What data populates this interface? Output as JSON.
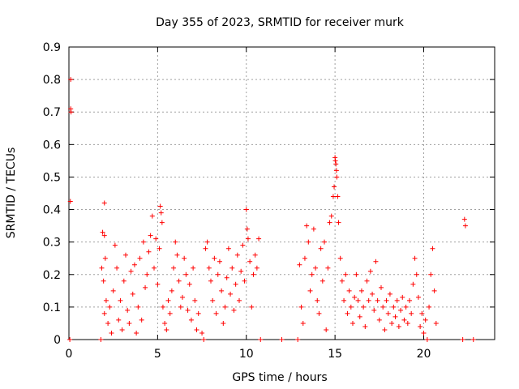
{
  "chart_data": {
    "type": "scatter",
    "title": "Day 355 of 2023, SRMTID for receiver murk",
    "xlabel": "GPS time / hours",
    "ylabel": "SRMTID / TECUs",
    "xlim": [
      0,
      24
    ],
    "ylim": [
      0,
      0.9
    ],
    "xticks": [
      0,
      5,
      10,
      15,
      20
    ],
    "xtick_labels": [
      "0",
      "5",
      "10",
      "15",
      "20"
    ],
    "yticks": [
      0,
      0.1,
      0.2,
      0.3,
      0.4,
      0.5,
      0.6,
      0.7,
      0.8,
      0.9
    ],
    "ytick_labels": [
      "0",
      "0.1",
      "0.2",
      "0.3",
      "0.4",
      "0.5",
      "0.6",
      "0.7",
      "0.8",
      "0.9"
    ],
    "grid": true,
    "marker": "+",
    "color": "#ff0000",
    "series": [
      {
        "name": "SRMTID",
        "points": [
          [
            0.1,
            0.8
          ],
          [
            0.1,
            0.71
          ],
          [
            0.12,
            0.7
          ],
          [
            0.08,
            0.425
          ],
          [
            0.05,
            0.0
          ],
          [
            1.8,
            0.0
          ],
          [
            2.0,
            0.42
          ],
          [
            1.9,
            0.33
          ],
          [
            2.0,
            0.32
          ],
          [
            1.85,
            0.22
          ],
          [
            2.05,
            0.25
          ],
          [
            1.95,
            0.18
          ],
          [
            2.1,
            0.12
          ],
          [
            2.0,
            0.08
          ],
          [
            2.2,
            0.05
          ],
          [
            2.3,
            0.1
          ],
          [
            2.4,
            0.02
          ],
          [
            2.5,
            0.15
          ],
          [
            2.6,
            0.29
          ],
          [
            2.7,
            0.22
          ],
          [
            2.8,
            0.06
          ],
          [
            2.9,
            0.12
          ],
          [
            3.0,
            0.03
          ],
          [
            3.1,
            0.18
          ],
          [
            3.2,
            0.26
          ],
          [
            3.3,
            0.09
          ],
          [
            3.4,
            0.05
          ],
          [
            3.5,
            0.21
          ],
          [
            3.6,
            0.14
          ],
          [
            3.7,
            0.23
          ],
          [
            3.8,
            0.02
          ],
          [
            3.9,
            0.1
          ],
          [
            4.0,
            0.25
          ],
          [
            4.1,
            0.06
          ],
          [
            4.2,
            0.3
          ],
          [
            4.3,
            0.16
          ],
          [
            4.4,
            0.2
          ],
          [
            4.5,
            0.27
          ],
          [
            4.6,
            0.32
          ],
          [
            4.7,
            0.38
          ],
          [
            4.8,
            0.22
          ],
          [
            4.9,
            0.31
          ],
          [
            5.0,
            0.17
          ],
          [
            5.1,
            0.28
          ],
          [
            5.15,
            0.41
          ],
          [
            5.2,
            0.39
          ],
          [
            5.25,
            0.36
          ],
          [
            5.3,
            0.1
          ],
          [
            5.4,
            0.05
          ],
          [
            5.5,
            0.03
          ],
          [
            5.6,
            0.12
          ],
          [
            5.7,
            0.08
          ],
          [
            5.8,
            0.15
          ],
          [
            5.9,
            0.22
          ],
          [
            6.0,
            0.3
          ],
          [
            6.1,
            0.26
          ],
          [
            6.2,
            0.18
          ],
          [
            6.3,
            0.1
          ],
          [
            6.4,
            0.13
          ],
          [
            6.5,
            0.25
          ],
          [
            6.6,
            0.2
          ],
          [
            6.7,
            0.09
          ],
          [
            6.8,
            0.17
          ],
          [
            6.9,
            0.06
          ],
          [
            7.0,
            0.22
          ],
          [
            7.1,
            0.12
          ],
          [
            7.2,
            0.03
          ],
          [
            7.3,
            0.08
          ],
          [
            7.5,
            0.02
          ],
          [
            7.6,
            0.0
          ],
          [
            7.7,
            0.28
          ],
          [
            7.8,
            0.3
          ],
          [
            7.9,
            0.22
          ],
          [
            8.0,
            0.18
          ],
          [
            8.1,
            0.12
          ],
          [
            8.2,
            0.25
          ],
          [
            8.3,
            0.08
          ],
          [
            8.4,
            0.2
          ],
          [
            8.5,
            0.24
          ],
          [
            8.6,
            0.15
          ],
          [
            8.7,
            0.05
          ],
          [
            8.8,
            0.1
          ],
          [
            8.9,
            0.19
          ],
          [
            9.0,
            0.28
          ],
          [
            9.1,
            0.14
          ],
          [
            9.2,
            0.22
          ],
          [
            9.3,
            0.09
          ],
          [
            9.4,
            0.17
          ],
          [
            9.5,
            0.26
          ],
          [
            9.6,
            0.12
          ],
          [
            9.7,
            0.21
          ],
          [
            9.8,
            0.29
          ],
          [
            9.9,
            0.18
          ],
          [
            10.0,
            0.4
          ],
          [
            10.05,
            0.34
          ],
          [
            10.1,
            0.31
          ],
          [
            10.2,
            0.24
          ],
          [
            10.3,
            0.1
          ],
          [
            10.4,
            0.2
          ],
          [
            10.5,
            0.26
          ],
          [
            10.6,
            0.22
          ],
          [
            10.7,
            0.31
          ],
          [
            10.8,
            0.0
          ],
          [
            12.0,
            0.0
          ],
          [
            12.9,
            0.0
          ],
          [
            13.0,
            0.23
          ],
          [
            13.1,
            0.1
          ],
          [
            13.2,
            0.05
          ],
          [
            13.3,
            0.25
          ],
          [
            13.4,
            0.35
          ],
          [
            13.5,
            0.3
          ],
          [
            13.6,
            0.15
          ],
          [
            13.7,
            0.2
          ],
          [
            13.8,
            0.34
          ],
          [
            13.9,
            0.22
          ],
          [
            14.0,
            0.12
          ],
          [
            14.1,
            0.08
          ],
          [
            14.2,
            0.28
          ],
          [
            14.3,
            0.18
          ],
          [
            14.4,
            0.3
          ],
          [
            14.5,
            0.03
          ],
          [
            14.6,
            0.22
          ],
          [
            14.7,
            0.36
          ],
          [
            14.8,
            0.38
          ],
          [
            14.9,
            0.44
          ],
          [
            14.95,
            0.47
          ],
          [
            15.0,
            0.56
          ],
          [
            15.02,
            0.55
          ],
          [
            15.05,
            0.54
          ],
          [
            15.08,
            0.52
          ],
          [
            15.1,
            0.5
          ],
          [
            15.15,
            0.44
          ],
          [
            15.2,
            0.36
          ],
          [
            15.3,
            0.25
          ],
          [
            15.4,
            0.18
          ],
          [
            15.5,
            0.12
          ],
          [
            15.6,
            0.2
          ],
          [
            15.7,
            0.08
          ],
          [
            15.8,
            0.15
          ],
          [
            15.9,
            0.1
          ],
          [
            16.0,
            0.05
          ],
          [
            16.1,
            0.13
          ],
          [
            16.2,
            0.2
          ],
          [
            16.3,
            0.12
          ],
          [
            16.4,
            0.07
          ],
          [
            16.5,
            0.15
          ],
          [
            16.6,
            0.1
          ],
          [
            16.7,
            0.04
          ],
          [
            16.8,
            0.18
          ],
          [
            16.9,
            0.12
          ],
          [
            17.0,
            0.21
          ],
          [
            17.1,
            0.14
          ],
          [
            17.2,
            0.09
          ],
          [
            17.3,
            0.24
          ],
          [
            17.4,
            0.12
          ],
          [
            17.5,
            0.06
          ],
          [
            17.6,
            0.16
          ],
          [
            17.7,
            0.1
          ],
          [
            17.8,
            0.03
          ],
          [
            17.9,
            0.12
          ],
          [
            18.0,
            0.08
          ],
          [
            18.1,
            0.14
          ],
          [
            18.2,
            0.05
          ],
          [
            18.3,
            0.1
          ],
          [
            18.4,
            0.07
          ],
          [
            18.5,
            0.12
          ],
          [
            18.6,
            0.04
          ],
          [
            18.7,
            0.09
          ],
          [
            18.8,
            0.13
          ],
          [
            18.9,
            0.06
          ],
          [
            19.0,
            0.1
          ],
          [
            19.1,
            0.05
          ],
          [
            19.2,
            0.12
          ],
          [
            19.3,
            0.08
          ],
          [
            19.4,
            0.17
          ],
          [
            19.5,
            0.25
          ],
          [
            19.6,
            0.2
          ],
          [
            19.7,
            0.13
          ],
          [
            19.8,
            0.04
          ],
          [
            19.9,
            0.08
          ],
          [
            20.0,
            0.02
          ],
          [
            20.1,
            0.06
          ],
          [
            20.2,
            0.0
          ],
          [
            20.3,
            0.1
          ],
          [
            20.4,
            0.2
          ],
          [
            20.5,
            0.28
          ],
          [
            20.6,
            0.15
          ],
          [
            20.7,
            0.05
          ],
          [
            22.3,
            0.37
          ],
          [
            22.35,
            0.35
          ],
          [
            22.2,
            0.0
          ],
          [
            22.8,
            0.0
          ]
        ]
      }
    ]
  }
}
